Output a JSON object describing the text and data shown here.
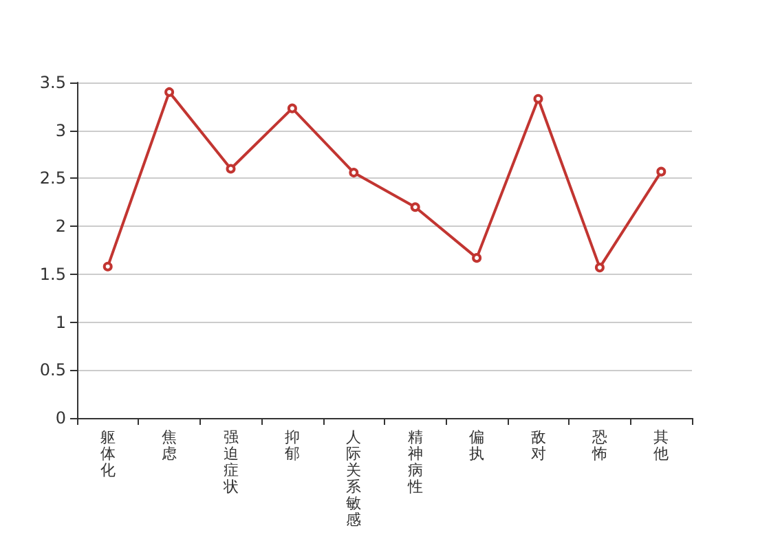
{
  "chart_data": {
    "type": "line",
    "categories": [
      "躯体化",
      "焦虑",
      "强迫症状",
      "抑郁",
      "人际关系敏感",
      "精神病性",
      "偏执",
      "敌对",
      "恐怖",
      "其他"
    ],
    "series": [
      {
        "color": "#c23531",
        "values": [
          1.58,
          3.4,
          2.6,
          3.23,
          2.56,
          2.2,
          1.67,
          3.33,
          1.57,
          2.57
        ]
      }
    ],
    "ylim": [
      0,
      3.5
    ],
    "yticks": [
      0,
      0.5,
      1,
      1.5,
      2,
      2.5,
      3,
      3.5
    ],
    "grid": "y",
    "marker": "circle",
    "line_style": "solid"
  }
}
